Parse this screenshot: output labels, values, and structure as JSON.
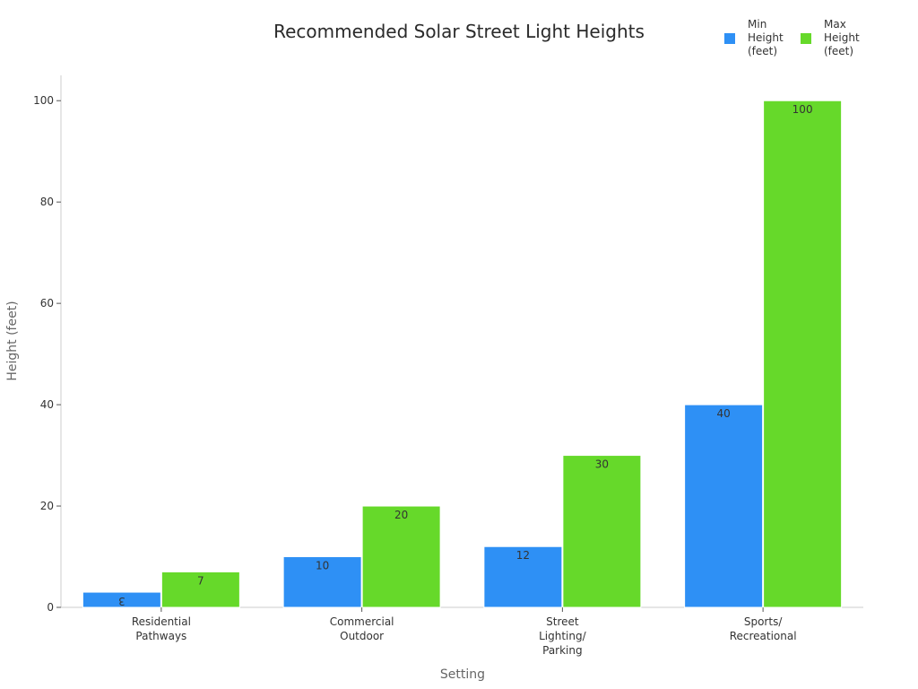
{
  "chart_data": {
    "type": "bar",
    "title": "Recommended Solar Street Light Heights",
    "xlabel": "Setting",
    "ylabel": "Height (feet)",
    "categories": [
      [
        "Residential",
        "Pathways"
      ],
      [
        "Commercial",
        "Outdoor"
      ],
      [
        "Street",
        "Lighting/",
        "Parking"
      ],
      [
        "Sports/",
        "Recreational"
      ]
    ],
    "series": [
      {
        "name": [
          "Min",
          "Height",
          "(feet)"
        ],
        "values": [
          3,
          10,
          12,
          40
        ],
        "color": "#2e90f5"
      },
      {
        "name": [
          "Max",
          "Height",
          "(feet)"
        ],
        "values": [
          7,
          20,
          30,
          100
        ],
        "color": "#66d92a"
      }
    ],
    "ylim": [
      0,
      105
    ],
    "yticks": [
      0,
      20,
      40,
      60,
      80,
      100
    ],
    "grid": false,
    "legend_position": "top-right",
    "axis_color": "#cccccc"
  }
}
